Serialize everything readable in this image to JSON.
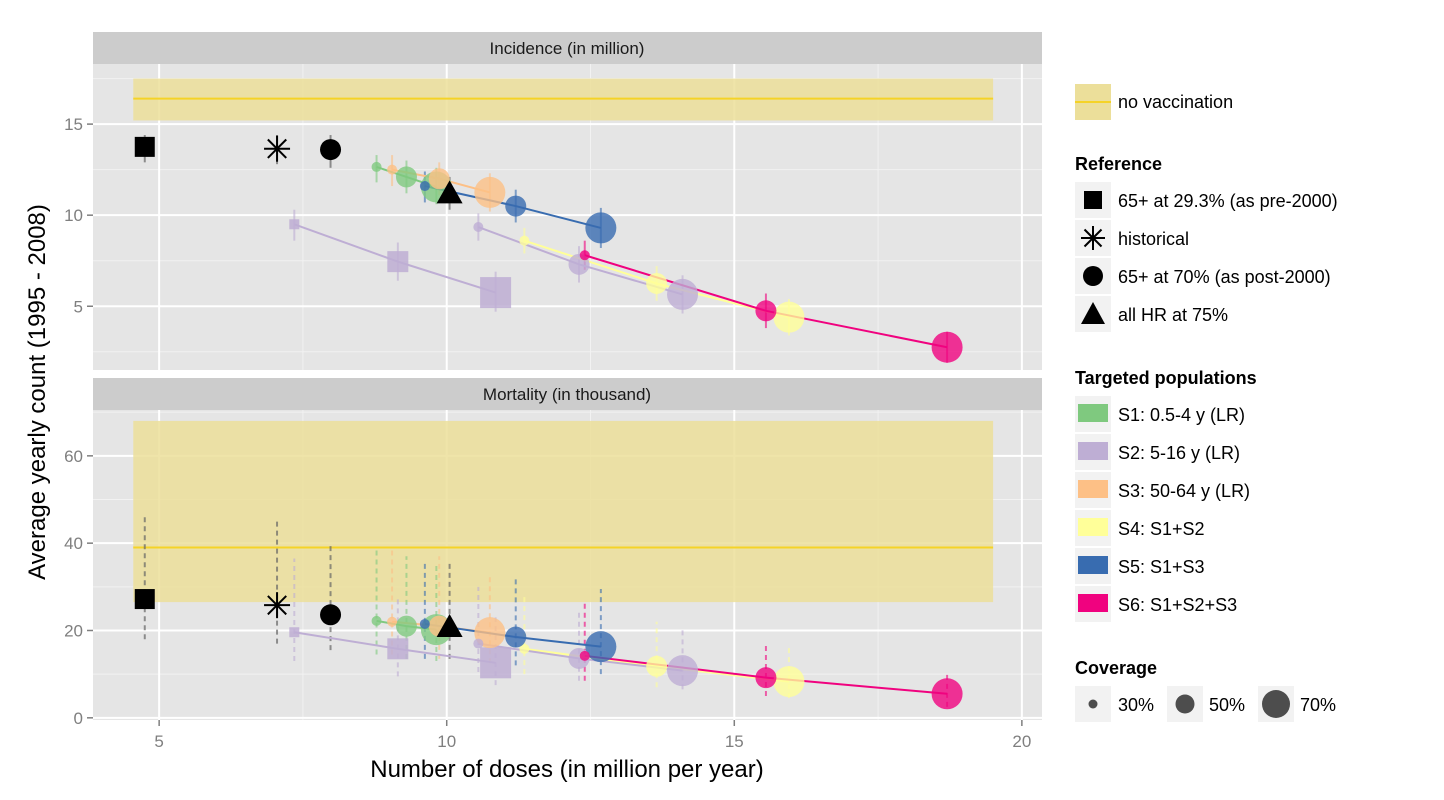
{
  "chart_data": {
    "type": "scatter",
    "xlabel": "Number of doses (in million per year)",
    "ylabel": "Average yearly count (1995 - 2008)",
    "xlim": [
      3.85,
      20.35
    ],
    "x_ticks": [
      "5",
      "10",
      "15",
      "20"
    ],
    "x_tick_values": [
      5,
      10,
      15,
      20
    ],
    "grid": true,
    "legend_position": "right",
    "panels": [
      {
        "title": "Incidence (in million)",
        "ylim": [
          1.5,
          18.3
        ],
        "y_ticks": [
          "5",
          "10",
          "15"
        ],
        "y_tick_values": [
          5,
          10,
          15
        ],
        "no_vaccination": {
          "value": 16.4,
          "low": 15.2,
          "high": 17.5,
          "x_range": [
            4.55,
            19.5
          ]
        },
        "reference": [
          {
            "ref": "pre2000",
            "x": 4.75,
            "y": 13.75,
            "low": 12.9,
            "high": 14.4
          },
          {
            "ref": "historical",
            "x": 7.05,
            "y": 13.65,
            "low": 12.8,
            "high": 14.4
          },
          {
            "ref": "post2000",
            "x": 7.98,
            "y": 13.6,
            "low": 12.6,
            "high": 14.4
          },
          {
            "ref": "allHR",
            "x": 10.05,
            "y": 11.2,
            "low": 10.3,
            "high": 12.1
          }
        ],
        "series": [
          {
            "key": "S1",
            "points": [
              {
                "x": 8.78,
                "y": 12.65,
                "c": 30,
                "low": 11.8,
                "high": 13.3
              },
              {
                "x": 9.3,
                "y": 12.1,
                "c": 50,
                "low": 11.2,
                "high": 13.0
              },
              {
                "x": 9.82,
                "y": 11.55,
                "c": 70,
                "low": 10.6,
                "high": 12.6
              }
            ]
          },
          {
            "key": "S2",
            "points": [
              {
                "x": 7.35,
                "y": 9.5,
                "c": 30,
                "low": 8.6,
                "high": 10.3
              },
              {
                "x": 9.15,
                "y": 7.45,
                "c": 50,
                "low": 6.4,
                "high": 8.5
              },
              {
                "x": 10.85,
                "y": 5.75,
                "c": 70,
                "low": 4.7,
                "high": 6.9
              }
            ]
          },
          {
            "key": "S3",
            "points": [
              {
                "x": 9.05,
                "y": 12.5,
                "c": 30,
                "low": 11.6,
                "high": 13.3
              },
              {
                "x": 9.87,
                "y": 12.0,
                "c": 50,
                "low": 11.1,
                "high": 12.9
              },
              {
                "x": 10.75,
                "y": 11.25,
                "c": 70,
                "low": 10.2,
                "high": 12.3
              }
            ]
          },
          {
            "key": "S4",
            "points": [
              {
                "x": 11.35,
                "y": 8.6,
                "c": 30,
                "low": 7.9,
                "high": 9.3
              },
              {
                "x": 13.65,
                "y": 6.25,
                "c": 50,
                "low": 5.3,
                "high": 7.2
              },
              {
                "x": 15.95,
                "y": 4.4,
                "c": 70,
                "low": 3.4,
                "high": 5.4
              }
            ]
          },
          {
            "key": "S5",
            "points": [
              {
                "x": 9.62,
                "y": 11.6,
                "c": 30,
                "low": 10.7,
                "high": 12.4
              },
              {
                "x": 11.2,
                "y": 10.5,
                "c": 50,
                "low": 9.6,
                "high": 11.4
              },
              {
                "x": 12.68,
                "y": 9.3,
                "c": 70,
                "low": 8.2,
                "high": 10.4
              }
            ]
          },
          {
            "key": "S2b",
            "points": [
              {
                "x": 10.55,
                "y": 9.35,
                "c": 30,
                "low": 8.6,
                "high": 10.1
              },
              {
                "x": 12.3,
                "y": 7.3,
                "c": 50,
                "low": 6.3,
                "high": 8.3
              },
              {
                "x": 14.1,
                "y": 5.65,
                "c": 70,
                "low": 4.6,
                "high": 6.7
              }
            ]
          },
          {
            "key": "S6",
            "points": [
              {
                "x": 12.4,
                "y": 7.8,
                "c": 30,
                "low": 7.0,
                "high": 8.6
              },
              {
                "x": 15.55,
                "y": 4.75,
                "c": 50,
                "low": 3.8,
                "high": 5.7
              },
              {
                "x": 18.7,
                "y": 2.75,
                "c": 70,
                "low": 1.9,
                "high": 3.6
              }
            ]
          }
        ]
      },
      {
        "title": "Mortality (in thousand)",
        "ylim": [
          -0.5,
          70.5
        ],
        "y_ticks": [
          "0",
          "20",
          "40",
          "60"
        ],
        "y_tick_values": [
          0,
          20,
          40,
          60
        ],
        "no_vaccination": {
          "value": 39,
          "low": 26.5,
          "high": 68,
          "x_range": [
            4.55,
            19.5
          ]
        },
        "reference": [
          {
            "ref": "pre2000",
            "x": 4.75,
            "y": 27.2,
            "low": 18.0,
            "high": 46.5
          },
          {
            "ref": "historical",
            "x": 7.05,
            "y": 25.8,
            "low": 17.0,
            "high": 45.5
          },
          {
            "ref": "post2000",
            "x": 7.98,
            "y": 23.6,
            "low": 15.5,
            "high": 39.5
          },
          {
            "ref": "allHR",
            "x": 10.05,
            "y": 20.8,
            "low": 13.5,
            "high": 36.0
          }
        ],
        "series": [
          {
            "key": "S1",
            "points": [
              {
                "x": 8.78,
                "y": 22.2,
                "c": 30,
                "low": 14.5,
                "high": 38.5
              },
              {
                "x": 9.3,
                "y": 21.0,
                "c": 50,
                "low": 13.5,
                "high": 37.0
              },
              {
                "x": 9.82,
                "y": 20.2,
                "c": 70,
                "low": 13.0,
                "high": 35.5
              }
            ]
          },
          {
            "key": "S2",
            "points": [
              {
                "x": 7.35,
                "y": 19.6,
                "c": 30,
                "low": 13.0,
                "high": 36.5
              },
              {
                "x": 9.15,
                "y": 15.8,
                "c": 50,
                "low": 9.5,
                "high": 28.0
              },
              {
                "x": 10.85,
                "y": 12.6,
                "c": 70,
                "low": 7.5,
                "high": 23.0
              }
            ]
          },
          {
            "key": "S3",
            "points": [
              {
                "x": 9.05,
                "y": 22.0,
                "c": 30,
                "low": 14.5,
                "high": 38.5
              },
              {
                "x": 9.87,
                "y": 21.0,
                "c": 50,
                "low": 13.5,
                "high": 37.0
              },
              {
                "x": 10.75,
                "y": 19.5,
                "c": 70,
                "low": 12.5,
                "high": 32.5
              }
            ]
          },
          {
            "key": "S4",
            "points": [
              {
                "x": 11.35,
                "y": 15.8,
                "c": 30,
                "low": 10.0,
                "high": 28.0
              },
              {
                "x": 13.65,
                "y": 11.8,
                "c": 50,
                "low": 7.0,
                "high": 22.0
              },
              {
                "x": 15.95,
                "y": 8.3,
                "c": 70,
                "low": 4.5,
                "high": 16.0
              }
            ]
          },
          {
            "key": "S5",
            "points": [
              {
                "x": 9.62,
                "y": 21.5,
                "c": 30,
                "low": 13.5,
                "high": 35.5
              },
              {
                "x": 11.2,
                "y": 18.5,
                "c": 50,
                "low": 12.0,
                "high": 32.0
              },
              {
                "x": 12.68,
                "y": 16.3,
                "c": 70,
                "low": 10.0,
                "high": 29.5
              }
            ]
          },
          {
            "key": "S2b",
            "points": [
              {
                "x": 10.55,
                "y": 17.0,
                "c": 30,
                "low": 10.5,
                "high": 30.0
              },
              {
                "x": 12.3,
                "y": 13.6,
                "c": 50,
                "low": 8.5,
                "high": 24.5
              },
              {
                "x": 14.1,
                "y": 10.8,
                "c": 70,
                "low": 6.5,
                "high": 20.5
              }
            ]
          },
          {
            "key": "S6",
            "points": [
              {
                "x": 12.4,
                "y": 14.2,
                "c": 30,
                "low": 8.5,
                "high": 27.0
              },
              {
                "x": 15.55,
                "y": 9.2,
                "c": 50,
                "low": 5.0,
                "high": 16.5
              },
              {
                "x": 18.7,
                "y": 5.5,
                "c": 70,
                "low": 2.5,
                "high": 10.0
              }
            ]
          }
        ]
      }
    ],
    "colors": {
      "S1": "#7fc97f",
      "S2": "#beaed4",
      "S2b": "#beaed4",
      "S3": "#fdc086",
      "S4": "#ffff99",
      "S5": "#386cb0",
      "S6": "#f0027f",
      "no_vaccination_line": "#f5d327",
      "no_vaccination_band": "#ecdf9a",
      "panel_bg": "#e5e5e5",
      "strip_bg": "#cccccc"
    },
    "legend": {
      "no_vaccination_label": "no vaccination",
      "reference_title": "Reference",
      "reference_items": [
        {
          "shape": "square",
          "label": "65+ at 29.3% (as pre-2000)"
        },
        {
          "shape": "asterisk",
          "label": "historical"
        },
        {
          "shape": "circle",
          "label": "65+ at 70% (as post-2000)"
        },
        {
          "shape": "triangle",
          "label": "all HR at 75%"
        }
      ],
      "targeted_title": "Targeted populations",
      "targeted_items": [
        {
          "key": "S1",
          "label": "S1: 0.5-4 y (LR)"
        },
        {
          "key": "S2",
          "label": "S2: 5-16 y (LR)"
        },
        {
          "key": "S3",
          "label": "S3: 50-64 y (LR)"
        },
        {
          "key": "S4",
          "label": "S4: S1+S2"
        },
        {
          "key": "S5",
          "label": "S5: S1+S3"
        },
        {
          "key": "S6",
          "label": "S6: S1+S2+S3"
        }
      ],
      "coverage_title": "Coverage",
      "coverage_items": [
        {
          "value": 30,
          "label": "30%"
        },
        {
          "value": 50,
          "label": "50%"
        },
        {
          "value": 70,
          "label": "70%"
        }
      ]
    }
  }
}
